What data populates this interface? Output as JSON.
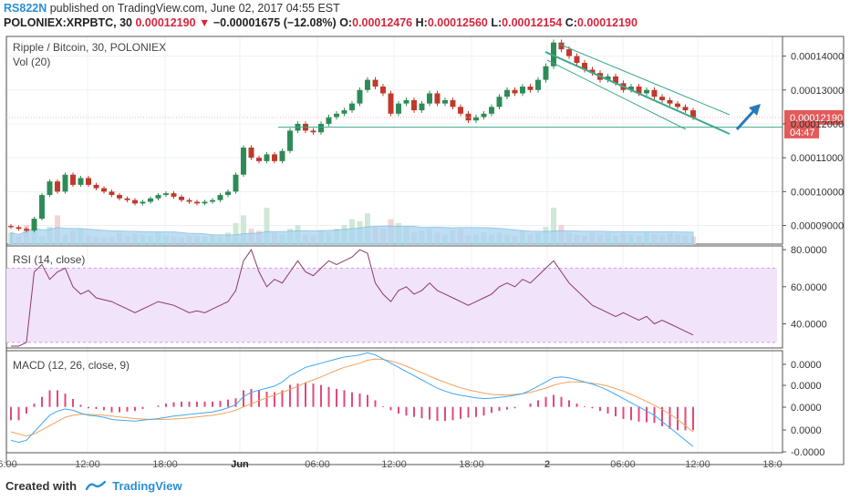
{
  "header": {
    "author": "RS822N",
    "published": "published on TradingView.com, June 02, 2017 04:55 EST",
    "symbol": "POLONIEX:XRPBTC, 30",
    "last": "0.00012190",
    "change": "−0.00001675 (−12.08%)",
    "ohlc": {
      "o_label": "O:",
      "o": "0.00012476",
      "h_label": "H:",
      "h": "0.00012560",
      "l_label": "L:",
      "l": "0.00012154",
      "c_label": "C:",
      "c": "0.00012190"
    }
  },
  "footer": {
    "created_with": "Created with",
    "brand": "TradingView"
  },
  "colors": {
    "up": "#2e8b57",
    "down": "#c0392b",
    "channel": "#3aa88a",
    "arrow": "#2a7ab8",
    "rsi_line": "#8b3a6b",
    "rsi_band": "#f1e3f9",
    "macd_line": "#3fa9f5",
    "signal_line": "#f5a05a",
    "hist": "#e04a7a",
    "vol_ma": "#a8d4f0"
  },
  "chart_data": [
    {
      "type": "candlestick",
      "title": "Ripple / Bitcoin, 30, POLONIEX",
      "volume_label": "Vol (20)",
      "y_ticks": [
        "0.00014000",
        "0.00013000",
        "0.00012000",
        "0.00011000",
        "0.00010000",
        "0.00009000"
      ],
      "ylim": [
        8.45e-05,
        0.0001458
      ],
      "x_ticks": [
        "6:00",
        "12:00",
        "18:00",
        "Jun",
        "06:00",
        "12:00",
        "18:00",
        "2",
        "06:00",
        "12:00",
        "18:0"
      ],
      "last_price_label": "0.00012190",
      "countdown_label": "04:47",
      "support_level": 0.000119,
      "close_path": [
        8.95e-05,
        8.9e-05,
        8.85e-05,
        9.2e-05,
        9.9e-05,
        0.000103,
        0.0001,
        0.000105,
        0.000102,
        0.000104,
        0.000102,
        0.000101,
        0.0001,
        9.9e-05,
        9.8e-05,
        9.75e-05,
        9.65e-05,
        9.7e-05,
        9.8e-05,
        9.9e-05,
        9.95e-05,
        9.85e-05,
        9.75e-05,
        9.7e-05,
        9.65e-05,
        9.7e-05,
        9.75e-05,
        9.9e-05,
        0.0001,
        0.000105,
        0.000113,
        0.00011,
        0.000109,
        0.000111,
        0.000109,
        0.000112,
        0.000118,
        0.00012,
        0.000118,
        0.0001175,
        0.00012,
        0.000122,
        0.000123,
        0.000124,
        0.000126,
        0.00013,
        0.000133,
        0.000131,
        0.000129,
        0.000123,
        0.000126,
        0.000127,
        0.000124,
        0.000126,
        0.000129,
        0.000126,
        0.000127,
        0.000125,
        0.000123,
        0.000121,
        0.000122,
        0.000123,
        0.000125,
        0.000128,
        0.00013,
        0.000129,
        0.000131,
        0.00013,
        0.000133,
        0.000137,
        0.000144,
        0.000142,
        0.00014,
        0.000138,
        0.000136,
        0.000135,
        0.000133,
        0.000134,
        0.000132,
        0.00013,
        0.000131,
        0.000129,
        0.00013,
        0.000128,
        0.000127,
        0.000126,
        0.000125,
        0.000124,
        0.0001219
      ],
      "volume": [
        12,
        8,
        20,
        26,
        8,
        18,
        30,
        10,
        14,
        16,
        9,
        8,
        7,
        8,
        12,
        9,
        11,
        10,
        9,
        12,
        9,
        8,
        7,
        9,
        8,
        8,
        10,
        8,
        12,
        22,
        30,
        16,
        14,
        38,
        12,
        10,
        16,
        20,
        10,
        9,
        14,
        12,
        16,
        20,
        26,
        24,
        32,
        18,
        16,
        26,
        22,
        18,
        12,
        14,
        16,
        12,
        10,
        14,
        16,
        9,
        10,
        12,
        10,
        12,
        10,
        9,
        14,
        10,
        12,
        18,
        38,
        20,
        12,
        10,
        9,
        12,
        10,
        12,
        9,
        11,
        10,
        9,
        12,
        10,
        9,
        11,
        10,
        9,
        8
      ]
    },
    {
      "type": "line",
      "title": "RSI (14, close)",
      "y_ticks": [
        "80.0000",
        "60.0000",
        "40.0000"
      ],
      "ylim": [
        27,
        82
      ],
      "band": [
        30,
        70
      ],
      "series": [
        {
          "values": [
            28,
            28,
            30,
            68,
            72,
            64,
            68,
            70,
            60,
            56,
            58,
            54,
            53,
            52,
            50,
            48,
            46,
            48,
            50,
            52,
            51,
            50,
            48,
            46,
            47,
            46,
            48,
            50,
            52,
            58,
            74,
            80,
            68,
            60,
            64,
            62,
            68,
            74,
            68,
            66,
            70,
            74,
            72,
            74,
            76,
            80,
            78,
            62,
            56,
            52,
            58,
            60,
            56,
            58,
            62,
            58,
            56,
            54,
            52,
            50,
            52,
            54,
            56,
            60,
            62,
            60,
            64,
            62,
            66,
            70,
            74,
            68,
            62,
            58,
            54,
            50,
            48,
            46,
            44,
            46,
            44,
            42,
            44,
            40,
            42,
            40,
            38,
            36,
            34
          ]
        }
      ]
    },
    {
      "type": "line",
      "title": "MACD (12, 26, close, 9)",
      "y_ticks": [
        "0.0000",
        "0.0000",
        "0.0000",
        "0.0000",
        "-0.0000"
      ],
      "ylim": [
        -1.1,
        1.35
      ],
      "series": [
        {
          "values": [
            -0.8,
            -0.85,
            -0.8,
            -0.6,
            -0.4,
            -0.2,
            -0.1,
            -0.05,
            -0.08,
            -0.15,
            -0.2,
            -0.22,
            -0.25,
            -0.3,
            -0.32,
            -0.33,
            -0.34,
            -0.32,
            -0.3,
            -0.28,
            -0.25,
            -0.22,
            -0.2,
            -0.18,
            -0.16,
            -0.14,
            -0.12,
            -0.08,
            -0.02,
            0.05,
            0.25,
            0.35,
            0.4,
            0.45,
            0.5,
            0.6,
            0.75,
            0.85,
            0.95,
            1.0,
            1.05,
            1.1,
            1.15,
            1.2,
            1.22,
            1.25,
            1.3,
            1.25,
            1.15,
            1.05,
            0.95,
            0.85,
            0.75,
            0.65,
            0.55,
            0.45,
            0.38,
            0.32,
            0.28,
            0.25,
            0.22,
            0.2,
            0.21,
            0.23,
            0.25,
            0.28,
            0.32,
            0.4,
            0.5,
            0.6,
            0.7,
            0.72,
            0.7,
            0.65,
            0.6,
            0.55,
            0.48,
            0.4,
            0.3,
            0.2,
            0.1,
            0.0,
            -0.1,
            -0.2,
            -0.35,
            -0.5,
            -0.65,
            -0.8,
            -0.95
          ]
        },
        {
          "values": [
            -0.6,
            -0.65,
            -0.7,
            -0.65,
            -0.55,
            -0.45,
            -0.35,
            -0.25,
            -0.2,
            -0.18,
            -0.18,
            -0.19,
            -0.2,
            -0.22,
            -0.24,
            -0.26,
            -0.28,
            -0.29,
            -0.3,
            -0.3,
            -0.3,
            -0.29,
            -0.28,
            -0.26,
            -0.24,
            -0.22,
            -0.2,
            -0.17,
            -0.13,
            -0.08,
            0.0,
            0.08,
            0.15,
            0.22,
            0.28,
            0.35,
            0.42,
            0.5,
            0.58,
            0.65,
            0.72,
            0.8,
            0.88,
            0.95,
            1.0,
            1.05,
            1.12,
            1.15,
            1.14,
            1.1,
            1.05,
            0.98,
            0.9,
            0.82,
            0.74,
            0.66,
            0.59,
            0.52,
            0.46,
            0.41,
            0.37,
            0.33,
            0.3,
            0.29,
            0.29,
            0.3,
            0.32,
            0.35,
            0.4,
            0.45,
            0.52,
            0.57,
            0.6,
            0.6,
            0.59,
            0.57,
            0.54,
            0.5,
            0.44,
            0.38,
            0.3,
            0.22,
            0.13,
            0.04,
            -0.06,
            -0.17,
            -0.3,
            -0.45,
            -0.6
          ]
        }
      ]
    }
  ]
}
